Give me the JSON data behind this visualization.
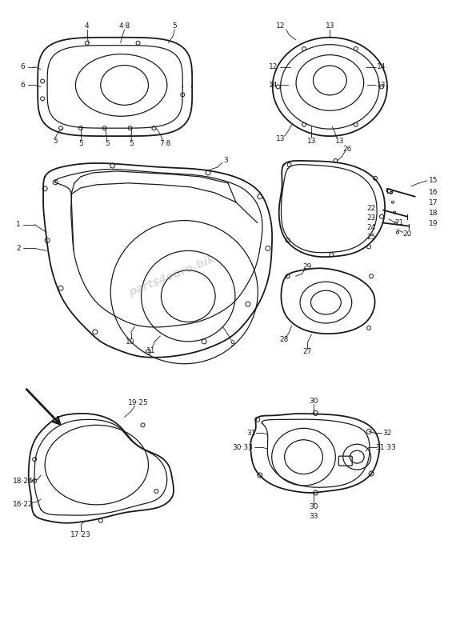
{
  "bg_color": "#ffffff",
  "line_color": "#1a1a1a",
  "watermark": "parts4euro.bik",
  "fig_w": 5.65,
  "fig_h": 8.0,
  "dpi": 100
}
